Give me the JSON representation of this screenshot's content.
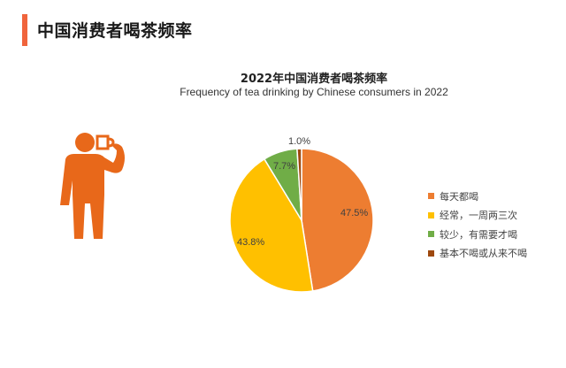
{
  "header": {
    "title": "中国消费者喝茶频率",
    "accent_color": "#f0643c"
  },
  "chart": {
    "title": "2022年中国消费者喝茶频率",
    "subtitle": "Frequency of tea drinking by Chinese consumers in 2022",
    "slices": [
      {
        "label": "每天都喝",
        "value_label": "47.5%",
        "color": "#ed7d31"
      },
      {
        "label": "经常，一周两三次",
        "value_label": "43.8%",
        "color": "#ffc000"
      },
      {
        "label": "较少，有需要才喝",
        "value_label": "7.7%",
        "color": "#70ad47"
      },
      {
        "label": "基本不喝或从来不喝",
        "value_label": "1.0%",
        "color": "#9e480e"
      }
    ]
  },
  "illustration": {
    "icon": "person-drinking-icon",
    "color": "#e8681a"
  },
  "chart_data": {
    "type": "pie",
    "title": "2022年中国消费者喝茶频率",
    "subtitle": "Frequency of tea drinking by Chinese consumers in 2022",
    "categories": [
      "每天都喝",
      "经常，一周两三次",
      "较少，有需要才喝",
      "基本不喝或从来不喝"
    ],
    "values": [
      47.5,
      43.8,
      7.7,
      1.0
    ],
    "unit": "%",
    "colors": [
      "#ed7d31",
      "#ffc000",
      "#70ad47",
      "#9e480e"
    ],
    "legend_position": "right",
    "start_angle": "12 o'clock, clockwise"
  }
}
